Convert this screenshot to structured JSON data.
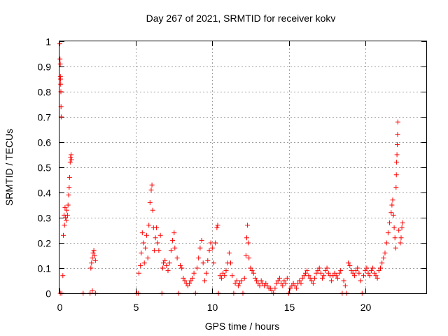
{
  "chart_data": {
    "type": "scatter",
    "title": "Day 267 of 2021, SRMTID for receiver kokv",
    "xlabel": "GPS time / hours",
    "ylabel": "SRMTID / TECUs",
    "xlim": [
      0,
      24
    ],
    "ylim": [
      0,
      1
    ],
    "xticks": [
      0,
      5,
      10,
      15,
      20
    ],
    "xtick_labels": [
      "0",
      "5",
      "10",
      "15",
      "20"
    ],
    "yticks": [
      0,
      0.1,
      0.2,
      0.3,
      0.4,
      0.5,
      0.6,
      0.7,
      0.8,
      0.9,
      1
    ],
    "ytick_labels": [
      "0",
      "0.1",
      "0.2",
      "0.3",
      "0.4",
      "0.5",
      "0.6",
      "0.7",
      "0.8",
      "0.9",
      "1"
    ],
    "grid": true,
    "marker": "plus",
    "color": "#ff0000",
    "series": [
      {
        "name": "SRMTID",
        "points": [
          [
            0.02,
            0.99
          ],
          [
            0.03,
            0.93
          ],
          [
            0.05,
            0.91
          ],
          [
            0.06,
            0.86
          ],
          [
            0.07,
            0.85
          ],
          [
            0.08,
            0.83
          ],
          [
            0.09,
            0.8
          ],
          [
            0.1,
            0.74
          ],
          [
            0.11,
            0.7
          ],
          [
            0.22,
            0.07
          ],
          [
            0.25,
            0.23
          ],
          [
            0.3,
            0.31
          ],
          [
            0.33,
            0.27
          ],
          [
            0.36,
            0.34
          ],
          [
            0.4,
            0.3
          ],
          [
            0.44,
            0.29
          ],
          [
            0.48,
            0.33
          ],
          [
            0.52,
            0.31
          ],
          [
            0.56,
            0.35
          ],
          [
            0.6,
            0.39
          ],
          [
            0.63,
            0.42
          ],
          [
            0.66,
            0.46
          ],
          [
            0.7,
            0.52
          ],
          [
            0.73,
            0.54
          ],
          [
            0.76,
            0.55
          ],
          [
            0.79,
            0.53
          ],
          [
            0.05,
            0.0
          ],
          [
            0.15,
            0.0
          ],
          [
            1.55,
            0.0
          ],
          [
            2.0,
            0.0
          ],
          [
            2.15,
            0.01
          ],
          [
            2.35,
            0.0
          ],
          [
            2.05,
            0.1
          ],
          [
            2.1,
            0.12
          ],
          [
            2.15,
            0.14
          ],
          [
            2.2,
            0.16
          ],
          [
            2.25,
            0.17
          ],
          [
            2.3,
            0.15
          ],
          [
            2.35,
            0.13
          ],
          [
            5.05,
            0.0
          ],
          [
            5.15,
            0.0
          ],
          [
            5.2,
            0.08
          ],
          [
            5.3,
            0.11
          ],
          [
            5.35,
            0.16
          ],
          [
            5.42,
            0.24
          ],
          [
            5.5,
            0.2
          ],
          [
            5.55,
            0.12
          ],
          [
            5.62,
            0.18
          ],
          [
            5.7,
            0.23
          ],
          [
            5.78,
            0.14
          ],
          [
            5.85,
            0.27
          ],
          [
            5.92,
            0.36
          ],
          [
            6.0,
            0.41
          ],
          [
            6.05,
            0.43
          ],
          [
            6.1,
            0.33
          ],
          [
            6.15,
            0.26
          ],
          [
            6.2,
            0.17
          ],
          [
            6.28,
            0.22
          ],
          [
            6.35,
            0.26
          ],
          [
            6.42,
            0.2
          ],
          [
            6.5,
            0.17
          ],
          [
            6.6,
            0.23
          ],
          [
            6.7,
            0.0
          ],
          [
            6.75,
            0.1
          ],
          [
            6.8,
            0.12
          ],
          [
            6.9,
            0.13
          ],
          [
            7.0,
            0.11
          ],
          [
            7.1,
            0.09
          ],
          [
            7.2,
            0.12
          ],
          [
            7.3,
            0.17
          ],
          [
            7.4,
            0.21
          ],
          [
            7.5,
            0.24
          ],
          [
            7.55,
            0.18
          ],
          [
            7.7,
            0.14
          ],
          [
            7.8,
            0.0
          ],
          [
            7.9,
            0.11
          ],
          [
            8.0,
            0.1
          ],
          [
            8.1,
            0.06
          ],
          [
            8.2,
            0.05
          ],
          [
            8.3,
            0.04
          ],
          [
            8.4,
            0.03
          ],
          [
            8.5,
            0.04
          ],
          [
            8.6,
            0.05
          ],
          [
            8.7,
            0.06
          ],
          [
            8.8,
            0.08
          ],
          [
            8.9,
            0.0
          ],
          [
            9.0,
            0.1
          ],
          [
            9.1,
            0.14
          ],
          [
            9.2,
            0.18
          ],
          [
            9.3,
            0.21
          ],
          [
            9.4,
            0.12
          ],
          [
            9.5,
            0.05
          ],
          [
            9.6,
            0.08
          ],
          [
            9.7,
            0.13
          ],
          [
            9.8,
            0.17
          ],
          [
            9.9,
            0.2
          ],
          [
            10.0,
            0.18
          ],
          [
            10.1,
            0.12
          ],
          [
            10.2,
            0.2
          ],
          [
            10.3,
            0.26
          ],
          [
            10.35,
            0.27
          ],
          [
            10.4,
            0.0
          ],
          [
            10.5,
            0.07
          ],
          [
            10.6,
            0.06
          ],
          [
            10.7,
            0.08
          ],
          [
            10.8,
            0.07
          ],
          [
            10.9,
            0.09
          ],
          [
            11.0,
            0.12
          ],
          [
            11.1,
            0.16
          ],
          [
            11.2,
            0.12
          ],
          [
            11.3,
            0.07
          ],
          [
            11.4,
            0.0
          ],
          [
            11.5,
            0.04
          ],
          [
            11.6,
            0.05
          ],
          [
            11.7,
            0.03
          ],
          [
            11.8,
            0.04
          ],
          [
            11.9,
            0.05
          ],
          [
            12.0,
            0.0
          ],
          [
            12.1,
            0.06
          ],
          [
            12.2,
            0.15
          ],
          [
            12.25,
            0.22
          ],
          [
            12.3,
            0.27
          ],
          [
            12.35,
            0.2
          ],
          [
            12.4,
            0.14
          ],
          [
            12.5,
            0.1
          ],
          [
            12.6,
            0.09
          ],
          [
            12.7,
            0.08
          ],
          [
            12.8,
            0.06
          ],
          [
            12.9,
            0.05
          ],
          [
            13.0,
            0.04
          ],
          [
            13.1,
            0.03
          ],
          [
            13.2,
            0.05
          ],
          [
            13.3,
            0.04
          ],
          [
            13.4,
            0.03
          ],
          [
            13.5,
            0.04
          ],
          [
            13.6,
            0.03
          ],
          [
            13.7,
            0.02
          ],
          [
            13.8,
            0.02
          ],
          [
            13.9,
            0.01
          ],
          [
            14.0,
            0.0
          ],
          [
            14.1,
            0.02
          ],
          [
            14.2,
            0.04
          ],
          [
            14.3,
            0.05
          ],
          [
            14.4,
            0.06
          ],
          [
            14.5,
            0.04
          ],
          [
            14.6,
            0.03
          ],
          [
            14.7,
            0.05
          ],
          [
            14.8,
            0.04
          ],
          [
            14.9,
            0.06
          ],
          [
            15.0,
            0.0
          ],
          [
            15.1,
            0.02
          ],
          [
            15.2,
            0.03
          ],
          [
            15.3,
            0.04
          ],
          [
            15.4,
            0.03
          ],
          [
            15.5,
            0.02
          ],
          [
            15.6,
            0.04
          ],
          [
            15.7,
            0.05
          ],
          [
            15.8,
            0.04
          ],
          [
            15.9,
            0.06
          ],
          [
            16.0,
            0.07
          ],
          [
            16.1,
            0.08
          ],
          [
            16.2,
            0.09
          ],
          [
            16.3,
            0.07
          ],
          [
            16.4,
            0.06
          ],
          [
            16.5,
            0.05
          ],
          [
            16.6,
            0.04
          ],
          [
            16.7,
            0.06
          ],
          [
            16.8,
            0.08
          ],
          [
            16.9,
            0.09
          ],
          [
            17.0,
            0.1
          ],
          [
            17.1,
            0.08
          ],
          [
            17.2,
            0.06
          ],
          [
            17.3,
            0.07
          ],
          [
            17.4,
            0.09
          ],
          [
            17.5,
            0.1
          ],
          [
            17.6,
            0.08
          ],
          [
            17.7,
            0.07
          ],
          [
            17.8,
            0.05
          ],
          [
            17.9,
            0.07
          ],
          [
            18.0,
            0.08
          ],
          [
            18.1,
            0.07
          ],
          [
            18.2,
            0.06
          ],
          [
            18.3,
            0.08
          ],
          [
            18.4,
            0.09
          ],
          [
            18.5,
            0.0
          ],
          [
            18.6,
            0.05
          ],
          [
            18.7,
            0.03
          ],
          [
            18.8,
            0.0
          ],
          [
            18.9,
            0.12
          ],
          [
            19.0,
            0.11
          ],
          [
            19.1,
            0.09
          ],
          [
            19.2,
            0.08
          ],
          [
            19.3,
            0.07
          ],
          [
            19.4,
            0.09
          ],
          [
            19.5,
            0.1
          ],
          [
            19.6,
            0.08
          ],
          [
            19.7,
            0.05
          ],
          [
            19.8,
            0.0
          ],
          [
            19.9,
            0.07
          ],
          [
            20.0,
            0.09
          ],
          [
            20.1,
            0.1
          ],
          [
            20.2,
            0.08
          ],
          [
            20.3,
            0.07
          ],
          [
            20.4,
            0.09
          ],
          [
            20.5,
            0.1
          ],
          [
            20.6,
            0.08
          ],
          [
            20.7,
            0.07
          ],
          [
            20.8,
            0.06
          ],
          [
            20.9,
            0.09
          ],
          [
            21.0,
            0.1
          ],
          [
            21.1,
            0.12
          ],
          [
            21.2,
            0.14
          ],
          [
            21.3,
            0.16
          ],
          [
            21.4,
            0.2
          ],
          [
            21.5,
            0.24
          ],
          [
            21.6,
            0.28
          ],
          [
            21.7,
            0.32
          ],
          [
            21.75,
            0.35
          ],
          [
            21.8,
            0.37
          ],
          [
            21.85,
            0.31
          ],
          [
            21.9,
            0.26
          ],
          [
            21.95,
            0.22
          ],
          [
            22.0,
            0.18
          ],
          [
            22.02,
            0.42
          ],
          [
            22.04,
            0.47
          ],
          [
            22.06,
            0.52
          ],
          [
            22.08,
            0.55
          ],
          [
            22.1,
            0.59
          ],
          [
            22.12,
            0.63
          ],
          [
            22.14,
            0.68
          ],
          [
            22.2,
            0.25
          ],
          [
            22.3,
            0.2
          ],
          [
            22.35,
            0.22
          ],
          [
            22.4,
            0.26
          ],
          [
            22.45,
            0.28
          ]
        ]
      }
    ]
  }
}
